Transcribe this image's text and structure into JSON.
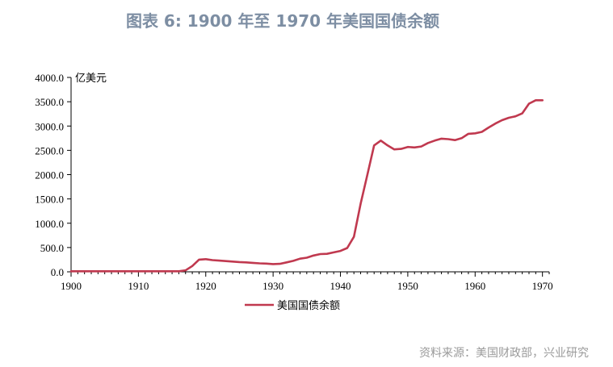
{
  "figure_title": "图表 6:  1900 年至 1970 年美国国债余额",
  "source_note": "资料来源：美国财政部，兴业研究",
  "colors": {
    "series": "#c0394f",
    "title": "#7d8ea3",
    "source": "#9a9a9a",
    "axis": "#000000"
  },
  "chart_data": {
    "type": "line",
    "title": "",
    "ylabel": "亿美元",
    "xlabel": "",
    "xlim": [
      1900,
      1971
    ],
    "ylim": [
      0,
      4000
    ],
    "x_ticks": [
      1900,
      1910,
      1920,
      1930,
      1940,
      1950,
      1960,
      1970
    ],
    "y_ticks": [
      0,
      500,
      1000,
      1500,
      2000,
      2500,
      3000,
      3500,
      4000
    ],
    "y_tick_labels": [
      "0.0",
      "500.0",
      "1000.0",
      "1500.0",
      "2000.0",
      "2500.0",
      "3000.0",
      "3500.0",
      "4000.0"
    ],
    "grid": false,
    "legend_position": "bottom-center",
    "series": [
      {
        "name": "美国国债余额",
        "x": [
          1900,
          1901,
          1902,
          1903,
          1904,
          1905,
          1906,
          1907,
          1908,
          1909,
          1910,
          1911,
          1912,
          1913,
          1914,
          1915,
          1916,
          1917,
          1918,
          1919,
          1920,
          1921,
          1922,
          1923,
          1924,
          1925,
          1926,
          1927,
          1928,
          1929,
          1930,
          1931,
          1932,
          1933,
          1934,
          1935,
          1936,
          1937,
          1938,
          1939,
          1940,
          1941,
          1942,
          1943,
          1944,
          1945,
          1946,
          1947,
          1948,
          1949,
          1950,
          1951,
          1952,
          1953,
          1954,
          1955,
          1956,
          1957,
          1958,
          1959,
          1960,
          1961,
          1962,
          1963,
          1964,
          1965,
          1966,
          1967,
          1968,
          1969,
          1970
        ],
        "values": [
          12,
          11,
          11,
          11,
          11,
          11,
          11,
          11,
          11,
          12,
          12,
          12,
          12,
          12,
          12,
          12,
          12,
          30,
          120,
          250,
          260,
          240,
          230,
          220,
          210,
          200,
          195,
          185,
          175,
          170,
          160,
          165,
          195,
          225,
          270,
          290,
          335,
          365,
          370,
          400,
          430,
          490,
          720,
          1400,
          2000,
          2600,
          2700,
          2600,
          2520,
          2530,
          2570,
          2560,
          2580,
          2650,
          2700,
          2740,
          2730,
          2710,
          2750,
          2840,
          2850,
          2880,
          2970,
          3050,
          3120,
          3170,
          3200,
          3260,
          3460,
          3530,
          3530
        ]
      }
    ]
  }
}
